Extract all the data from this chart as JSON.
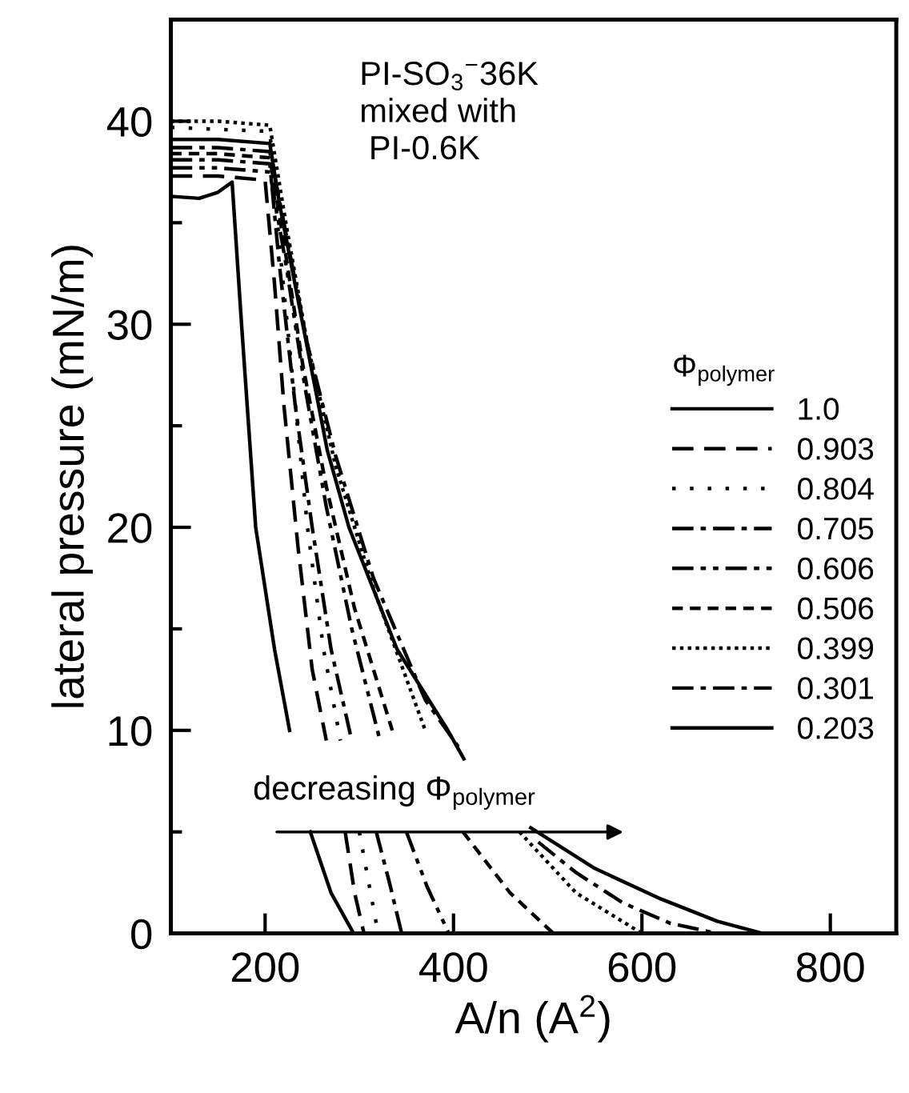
{
  "chart_data": {
    "type": "line",
    "xlabel": "A/n (A$^{2}$)",
    "ylabel": "lateral pressure (mN/m)",
    "legend_title": "Φ$_{polymer}$",
    "legend": "right",
    "annotations": [
      "PI-SO$_{3}$$^{−}$36K\nmixed with\n PI-0.6K",
      "decreasing Φ$_{polymer}$"
    ],
    "xlim": [
      100,
      870
    ],
    "ylim": [
      0,
      45
    ],
    "xticks": [
      200,
      400,
      600,
      800
    ],
    "yticks": [
      0,
      {
        "value": 5,
        "label": null
      },
      10,
      {
        "value": 15,
        "label": null
      },
      20,
      {
        "value": 25,
        "label": null
      },
      30,
      {
        "value": 35,
        "label": null
      },
      40
    ],
    "grid": false,
    "marker": "none",
    "series": [
      {
        "name": "1.0",
        "color": "#000000",
        "line_style": "solid",
        "x": [
          100,
          130,
          150,
          165,
          175,
          190,
          210,
          226,
          237,
          248,
          270,
          294
        ],
        "values": [
          36.3,
          36.2,
          36.5,
          37,
          30,
          20,
          14,
          10,
          null,
          5,
          2,
          0
        ]
      },
      {
        "name": "0.903",
        "color": "#000000",
        "line_style": "dashed",
        "x": [
          100,
          150,
          200,
          210,
          220,
          235,
          250,
          265,
          275,
          285,
          295,
          305
        ],
        "values": [
          37.3,
          37.3,
          37.1,
          32,
          26,
          19,
          13,
          9.5,
          null,
          5,
          2,
          0
        ]
      },
      {
        "name": "0.804",
        "color": "#000000",
        "line_style": "dotted",
        "x": [
          100,
          150,
          205,
          215,
          230,
          245,
          262,
          280,
          290,
          300,
          310,
          320
        ],
        "values": [
          39.7,
          39.6,
          39.5,
          34,
          27,
          20,
          14,
          9.5,
          null,
          5,
          2.5,
          0
        ]
      },
      {
        "name": "0.705",
        "color": "#000000",
        "line_style": "dashdot",
        "x": [
          100,
          150,
          205,
          215,
          232,
          250,
          270,
          292,
          305,
          318,
          332,
          345
        ],
        "values": [
          38.1,
          38.1,
          37.9,
          33,
          26,
          20,
          14,
          9.5,
          null,
          5,
          2.5,
          0
        ]
      },
      {
        "name": "0.606",
        "color": "#000000",
        "line_style": "dashdotdot",
        "x": [
          100,
          150,
          205,
          222,
          242,
          265,
          292,
          322,
          336,
          350,
          372,
          395
        ],
        "values": [
          37.7,
          37.7,
          37.5,
          33,
          27,
          21,
          15,
          9.5,
          null,
          5,
          2.3,
          0
        ]
      },
      {
        "name": "0.506",
        "color": "#000000",
        "line_style": "shortdash",
        "x": [
          100,
          150,
          205,
          220,
          240,
          265,
          295,
          335,
          370,
          410,
          460,
          506
        ],
        "values": [
          38.4,
          38.4,
          38.2,
          34,
          28,
          22,
          16,
          10,
          null,
          5,
          2,
          0
        ]
      },
      {
        "name": "0.399",
        "color": "#000000",
        "line_style": "finedotted",
        "x": [
          100,
          150,
          205,
          222,
          245,
          275,
          315,
          370,
          420,
          470,
          530,
          600
        ],
        "values": [
          40,
          40,
          39.8,
          35,
          29,
          23,
          17,
          10,
          null,
          5,
          2,
          0
        ]
      },
      {
        "name": "0.301",
        "color": "#000000",
        "line_style": "dashdot",
        "x": [
          100,
          150,
          205,
          220,
          245,
          275,
          315,
          370,
          405,
          450,
          490,
          530,
          580,
          630,
          680
        ],
        "values": [
          38.7,
          38.7,
          38.5,
          35,
          29,
          23.5,
          17.5,
          11.5,
          9.2,
          null,
          4.5,
          3,
          1.5,
          0.5,
          0
        ]
      },
      {
        "name": "0.203",
        "color": "#000000",
        "line_style": "solid",
        "x": [
          100,
          150,
          205,
          215,
          240,
          266,
          289,
          340,
          394,
          411,
          450,
          482,
          550,
          620,
          680,
          728
        ],
        "values": [
          39.1,
          39.1,
          38.9,
          36,
          30,
          23.8,
          20,
          14,
          10,
          8.6,
          null,
          5.2,
          3.2,
          1.7,
          0.6,
          0
        ]
      }
    ]
  }
}
